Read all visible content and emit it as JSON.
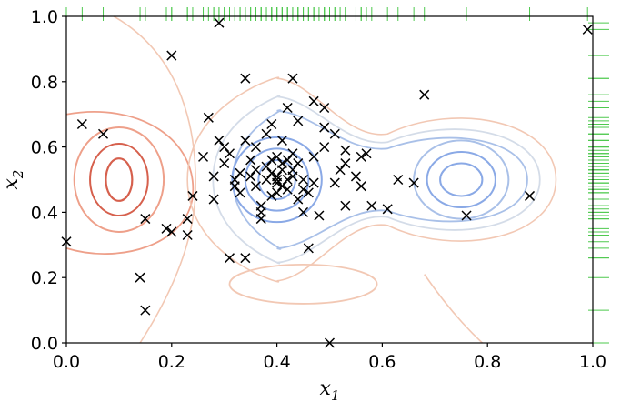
{
  "chart_data": {
    "type": "scatter",
    "xlabel": "x",
    "xlabel_subscript": "1",
    "ylabel": "x",
    "ylabel_subscript": "2",
    "xlim": [
      0.0,
      1.0
    ],
    "ylim": [
      0.0,
      1.0
    ],
    "x_ticks": [
      "0.0",
      "0.2",
      "0.4",
      "0.6",
      "0.8",
      "1.0"
    ],
    "y_ticks": [
      "0.0",
      "0.2",
      "0.4",
      "0.6",
      "0.8",
      "1.0"
    ],
    "grid": false,
    "marker": "x",
    "marker_color": "#000000",
    "rug_color": "#4ec94e",
    "contour_colors": {
      "negative_outer": "#f2c8b4",
      "negative_mid": "#eea08a",
      "negative_inner": "#d6604d",
      "positive_outer": "#d4dce8",
      "positive_mid": "#a9c0e8",
      "positive_inner": "#8aa9e6"
    },
    "points": [
      [
        0.0,
        0.31
      ],
      [
        0.03,
        0.67
      ],
      [
        0.07,
        0.64
      ],
      [
        0.14,
        0.2
      ],
      [
        0.15,
        0.1
      ],
      [
        0.15,
        0.38
      ],
      [
        0.19,
        0.35
      ],
      [
        0.2,
        0.34
      ],
      [
        0.2,
        0.88
      ],
      [
        0.23,
        0.38
      ],
      [
        0.23,
        0.33
      ],
      [
        0.24,
        0.45
      ],
      [
        0.26,
        0.57
      ],
      [
        0.27,
        0.69
      ],
      [
        0.28,
        0.51
      ],
      [
        0.28,
        0.44
      ],
      [
        0.29,
        0.98
      ],
      [
        0.29,
        0.62
      ],
      [
        0.3,
        0.6
      ],
      [
        0.3,
        0.55
      ],
      [
        0.31,
        0.58
      ],
      [
        0.31,
        0.26
      ],
      [
        0.32,
        0.48
      ],
      [
        0.32,
        0.5
      ],
      [
        0.33,
        0.52
      ],
      [
        0.33,
        0.46
      ],
      [
        0.34,
        0.26
      ],
      [
        0.34,
        0.81
      ],
      [
        0.34,
        0.62
      ],
      [
        0.35,
        0.56
      ],
      [
        0.35,
        0.51
      ],
      [
        0.36,
        0.48
      ],
      [
        0.36,
        0.53
      ],
      [
        0.36,
        0.6
      ],
      [
        0.37,
        0.4
      ],
      [
        0.37,
        0.38
      ],
      [
        0.37,
        0.42
      ],
      [
        0.38,
        0.5
      ],
      [
        0.38,
        0.64
      ],
      [
        0.38,
        0.54
      ],
      [
        0.39,
        0.56
      ],
      [
        0.39,
        0.52
      ],
      [
        0.39,
        0.45
      ],
      [
        0.39,
        0.67
      ],
      [
        0.4,
        0.5
      ],
      [
        0.4,
        0.51
      ],
      [
        0.4,
        0.49
      ],
      [
        0.4,
        0.57
      ],
      [
        0.4,
        0.46
      ],
      [
        0.41,
        0.53
      ],
      [
        0.41,
        0.48
      ],
      [
        0.41,
        0.55
      ],
      [
        0.41,
        0.62
      ],
      [
        0.42,
        0.72
      ],
      [
        0.42,
        0.5
      ],
      [
        0.42,
        0.47
      ],
      [
        0.42,
        0.56
      ],
      [
        0.43,
        0.53
      ],
      [
        0.43,
        0.58
      ],
      [
        0.43,
        0.51
      ],
      [
        0.43,
        0.81
      ],
      [
        0.44,
        0.55
      ],
      [
        0.44,
        0.68
      ],
      [
        0.44,
        0.44
      ],
      [
        0.45,
        0.5
      ],
      [
        0.45,
        0.4
      ],
      [
        0.45,
        0.47
      ],
      [
        0.46,
        0.29
      ],
      [
        0.46,
        0.46
      ],
      [
        0.47,
        0.57
      ],
      [
        0.47,
        0.49
      ],
      [
        0.47,
        0.74
      ],
      [
        0.48,
        0.39
      ],
      [
        0.49,
        0.6
      ],
      [
        0.49,
        0.72
      ],
      [
        0.49,
        0.66
      ],
      [
        0.5,
        0.0
      ],
      [
        0.51,
        0.49
      ],
      [
        0.51,
        0.64
      ],
      [
        0.52,
        0.53
      ],
      [
        0.53,
        0.55
      ],
      [
        0.53,
        0.59
      ],
      [
        0.53,
        0.42
      ],
      [
        0.55,
        0.51
      ],
      [
        0.56,
        0.48
      ],
      [
        0.56,
        0.57
      ],
      [
        0.57,
        0.58
      ],
      [
        0.58,
        0.42
      ],
      [
        0.61,
        0.41
      ],
      [
        0.63,
        0.5
      ],
      [
        0.66,
        0.49
      ],
      [
        0.68,
        0.76
      ],
      [
        0.76,
        0.39
      ],
      [
        0.88,
        0.45
      ],
      [
        0.99,
        0.96
      ]
    ]
  }
}
